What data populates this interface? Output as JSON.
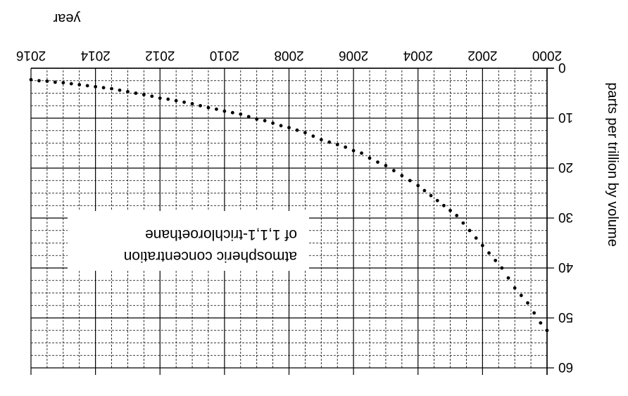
{
  "chart_data": {
    "type": "scatter",
    "orientation": "rotated 180 degrees (image upside down)",
    "xlabel": "year",
    "ylabel": "parts per trillion by volume",
    "annotation_lines": [
      "atmospheric concentration",
      "of 1,1,1-trichloroethane"
    ],
    "xlim": [
      2000,
      2016
    ],
    "ylim": [
      0,
      60
    ],
    "x_ticks": [
      "2000",
      "2002",
      "2004",
      "2006",
      "2008",
      "2010",
      "2012",
      "2014",
      "2016"
    ],
    "y_ticks": [
      "0",
      "10",
      "20",
      "30",
      "40",
      "50",
      "60"
    ],
    "grid": "major solid, minor dashed",
    "series": [
      {
        "marker": "dot",
        "color": "#000000",
        "x": [
          2000.0,
          2000.2,
          2000.4,
          2000.6,
          2000.8,
          2001.0,
          2001.2,
          2001.4,
          2001.6,
          2001.8,
          2002.0,
          2002.2,
          2002.4,
          2002.6,
          2002.8,
          2003.0,
          2003.2,
          2003.4,
          2003.6,
          2003.8,
          2004.0,
          2004.25,
          2004.5,
          2004.75,
          2005.0,
          2005.25,
          2005.5,
          2005.75,
          2006.0,
          2006.25,
          2006.5,
          2006.75,
          2007.0,
          2007.25,
          2007.5,
          2007.75,
          2008.0,
          2008.25,
          2008.5,
          2008.75,
          2009.0,
          2009.25,
          2009.5,
          2009.75,
          2010.0,
          2010.25,
          2010.5,
          2010.75,
          2011.0,
          2011.25,
          2011.5,
          2011.75,
          2012.0,
          2012.25,
          2012.5,
          2012.75,
          2013.0,
          2013.25,
          2013.5,
          2013.75,
          2014.0,
          2014.25,
          2014.5,
          2014.75,
          2015.0,
          2015.25,
          2015.5,
          2015.75,
          2016.0
        ],
        "y": [
          52.5,
          51.0,
          49.0,
          47.0,
          45.5,
          44.0,
          42.0,
          40.0,
          38.5,
          37.0,
          35.5,
          34.0,
          32.5,
          31.0,
          29.5,
          28.5,
          27.5,
          26.5,
          25.5,
          24.5,
          23.5,
          22.5,
          21.5,
          20.5,
          19.5,
          18.8,
          18.0,
          17.0,
          16.5,
          15.8,
          15.3,
          14.8,
          14.3,
          13.6,
          12.9,
          12.4,
          11.9,
          11.5,
          11.0,
          10.5,
          10.2,
          9.7,
          9.2,
          8.9,
          8.6,
          8.2,
          7.9,
          7.5,
          7.1,
          6.8,
          6.5,
          6.2,
          6.0,
          5.6,
          5.3,
          5.0,
          4.7,
          4.4,
          4.1,
          3.9,
          3.7,
          3.5,
          3.3,
          3.1,
          2.9,
          2.8,
          2.6,
          2.5,
          2.3
        ]
      }
    ]
  }
}
